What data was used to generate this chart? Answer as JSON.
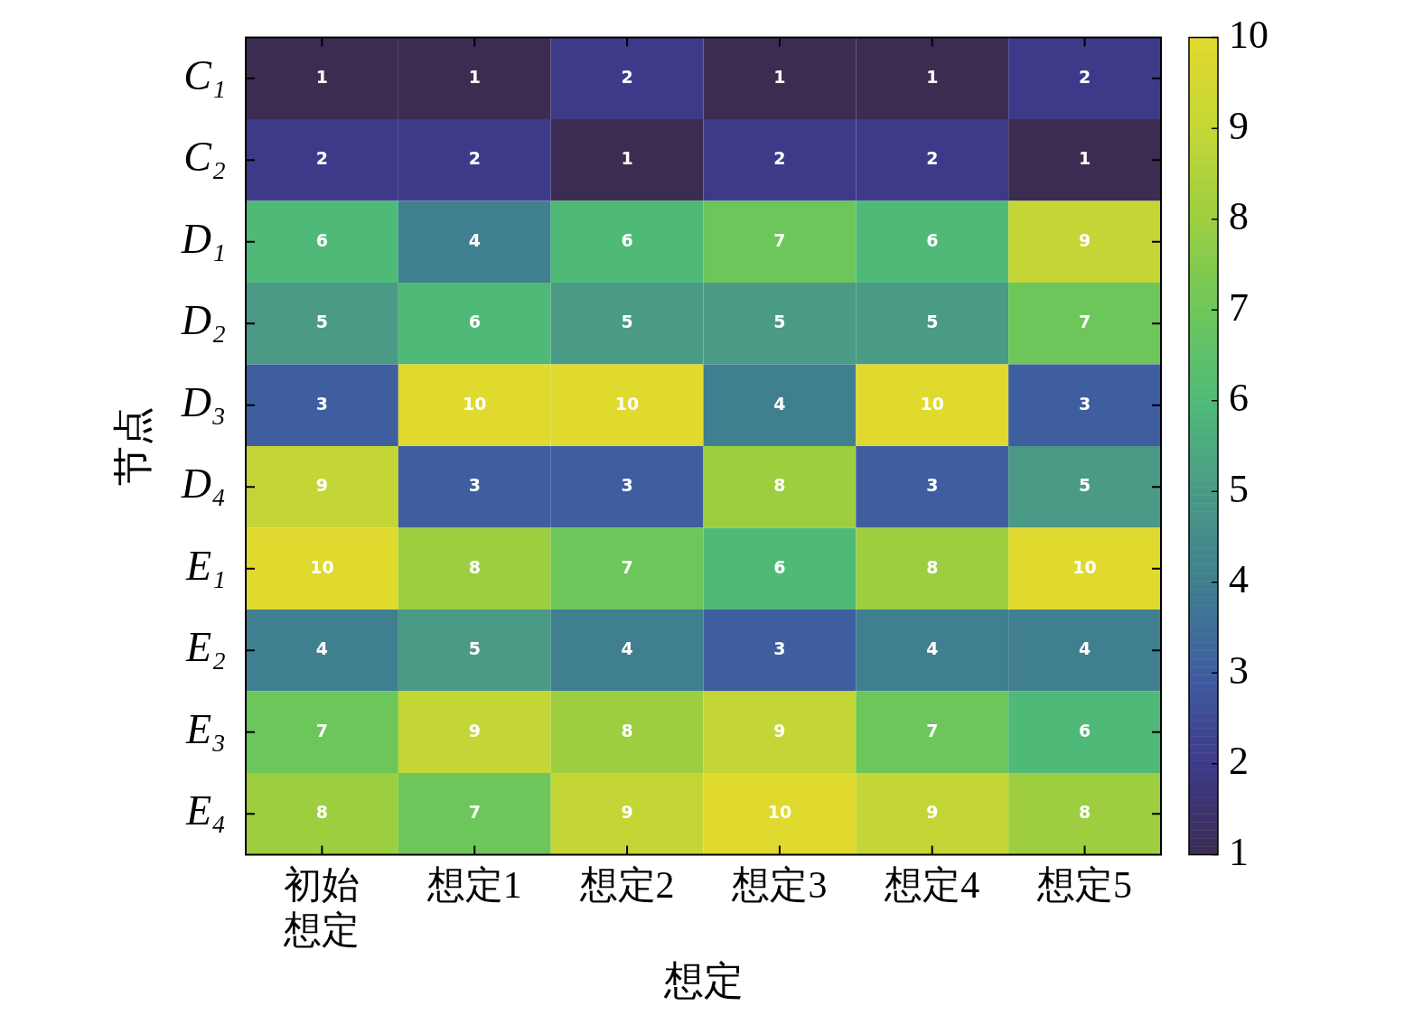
{
  "chart_data": {
    "type": "heatmap",
    "xlabel": "想定",
    "ylabel": "节点",
    "categories": [
      "初始想定",
      "想定1",
      "想定2",
      "想定3",
      "想定4",
      "想定5"
    ],
    "y_categories": [
      "C₁",
      "C₂",
      "D₁",
      "D₂",
      "D₃",
      "D₄",
      "E₁",
      "E₂",
      "E₃",
      "E₄"
    ],
    "cells": [
      [
        1,
        1,
        2,
        1,
        1,
        2
      ],
      [
        2,
        2,
        1,
        2,
        2,
        1
      ],
      [
        6,
        4,
        6,
        7,
        6,
        9
      ],
      [
        5,
        6,
        5,
        5,
        5,
        7
      ],
      [
        3,
        10,
        10,
        4,
        10,
        3
      ],
      [
        9,
        3,
        3,
        8,
        3,
        5
      ],
      [
        10,
        8,
        7,
        6,
        8,
        10
      ],
      [
        4,
        5,
        4,
        3,
        4,
        4
      ],
      [
        7,
        9,
        8,
        9,
        7,
        6
      ],
      [
        8,
        7,
        9,
        10,
        9,
        8
      ]
    ],
    "clim": [
      1,
      10
    ],
    "cticks": [
      1,
      2,
      3,
      4,
      5,
      6,
      7,
      8,
      9,
      10
    ],
    "data_labels": true
  }
}
